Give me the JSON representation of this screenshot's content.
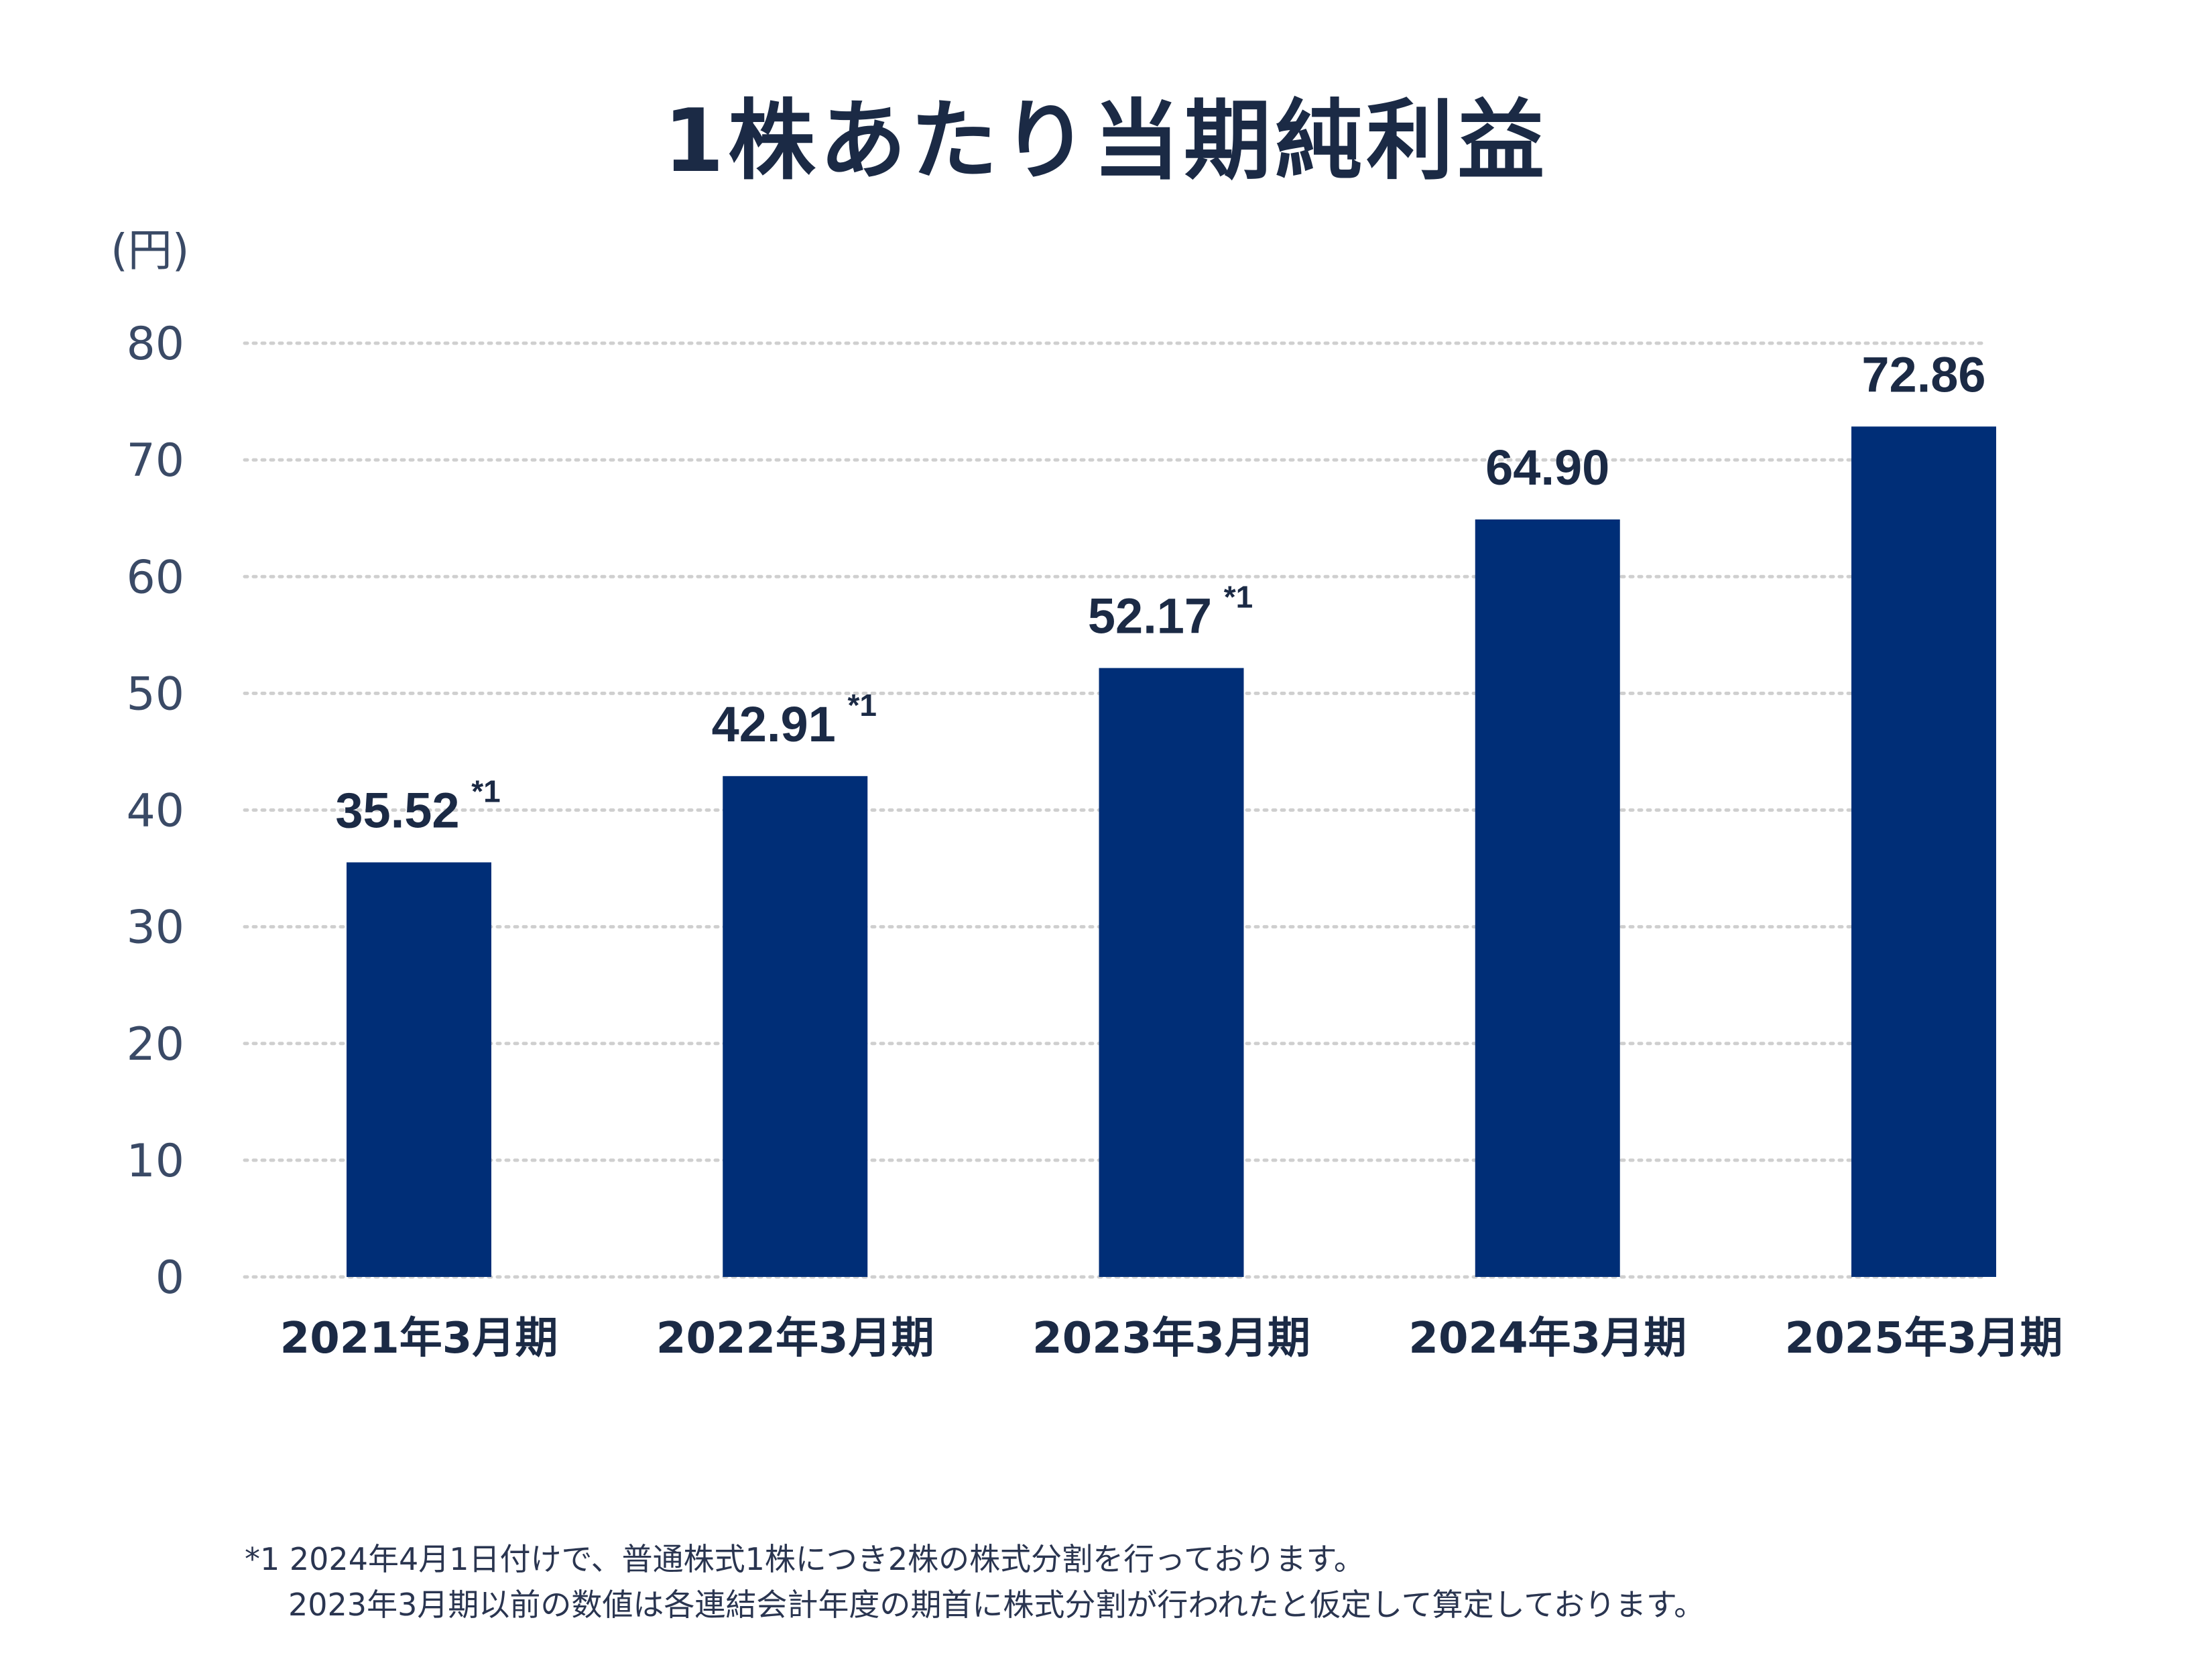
{
  "title": "1株あたり当期純利益",
  "unit_label": "(円)",
  "footnotes": [
    "*1 2024年4月1日付けで、普通株式1株につき2株の株式分割を行っております。",
    "2023年3月期以前の数値は各連結会計年度の期首に株式分割が行われたと仮定して算定しております。"
  ],
  "colors": {
    "bar": "#002e77",
    "text": "#1b2a45",
    "grid": "#cfcfcf"
  },
  "chart_data": {
    "type": "bar",
    "title": "1株あたり当期純利益",
    "ylabel": "(円)",
    "categories": [
      "2021年3月期",
      "2022年3月期",
      "2023年3月期",
      "2024年3月期",
      "2025年3月期"
    ],
    "values": [
      35.52,
      42.91,
      52.17,
      64.9,
      72.86
    ],
    "value_labels": [
      "35.52",
      "42.91",
      "52.17",
      "64.90",
      "72.86"
    ],
    "value_notes": [
      "*1",
      "*1",
      "*1",
      "",
      ""
    ],
    "ylim": [
      0,
      80
    ],
    "yticks": [
      0,
      10,
      20,
      30,
      40,
      50,
      60,
      70,
      80
    ],
    "grid": true,
    "grid_style": "dotted",
    "legend": "none"
  }
}
